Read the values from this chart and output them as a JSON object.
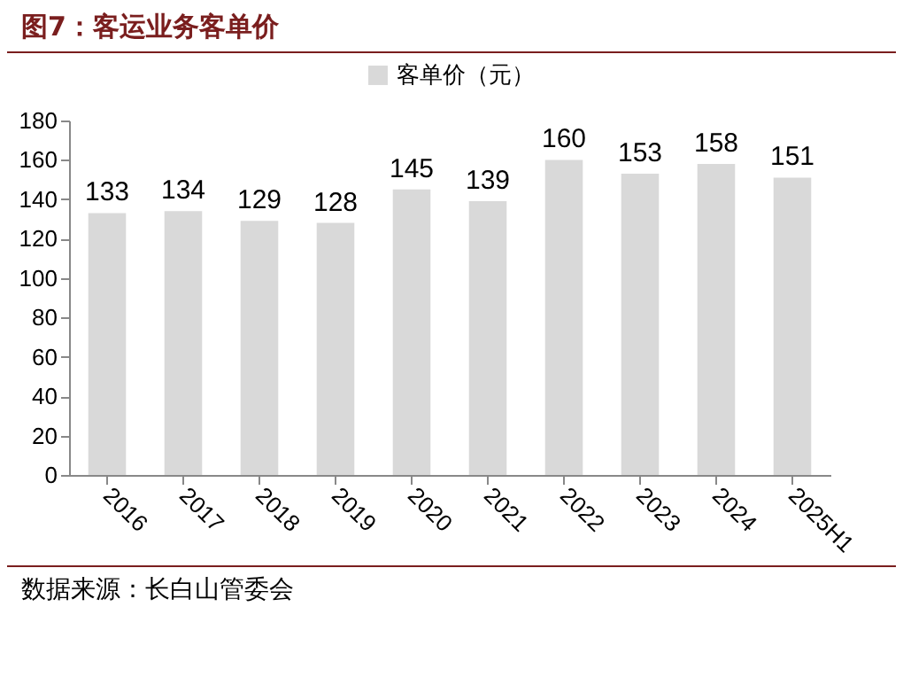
{
  "chart_data": {
    "type": "bar",
    "title": "图7：客运业务客单价",
    "categories": [
      "2016",
      "2017",
      "2018",
      "2019",
      "2020",
      "2021",
      "2022",
      "2023",
      "2024",
      "2025H1"
    ],
    "series": [
      {
        "name": "客单价（元）",
        "color": "#d9d9d9",
        "values": [
          133,
          134,
          129,
          128,
          145,
          139,
          160,
          153,
          158,
          151
        ]
      }
    ],
    "ylim": [
      0,
      180
    ],
    "yticks": [
      0,
      20,
      40,
      60,
      80,
      100,
      120,
      140,
      160,
      180
    ],
    "data_labels": true,
    "legend": "top",
    "grid": false,
    "annotations": [
      "数据来源：长白山管委会"
    ]
  }
}
